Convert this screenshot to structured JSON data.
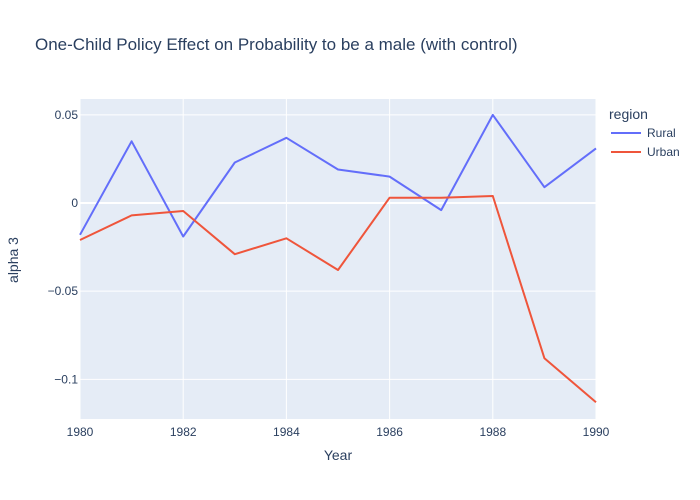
{
  "chart_data": {
    "type": "line",
    "title": "One-Child Policy Effect on Probability to be a male (with control)",
    "xlabel": "Year",
    "ylabel": "alpha 3",
    "xlim": [
      1980,
      1990
    ],
    "ylim": [
      -0.1225,
      0.059
    ],
    "x_ticks": [
      1980,
      1982,
      1984,
      1986,
      1988,
      1990
    ],
    "x_tick_labels": [
      "1980",
      "1982",
      "1984",
      "1986",
      "1988",
      "1990"
    ],
    "y_ticks": [
      0.05,
      0,
      -0.05,
      -0.1
    ],
    "y_tick_labels": [
      "0.05",
      "0",
      "−0.05",
      "−0.1"
    ],
    "legend": {
      "title": "region",
      "placement": "top-right outside"
    },
    "grid": true,
    "background_color": "#e5ecf6",
    "x": [
      1980,
      1981,
      1982,
      1983,
      1984,
      1985,
      1986,
      1987,
      1988,
      1989,
      1990
    ],
    "series": [
      {
        "name": "Rural",
        "color": "#636efa",
        "values": [
          -0.018,
          0.035,
          -0.019,
          0.023,
          0.037,
          0.019,
          0.015,
          -0.004,
          0.05,
          0.009,
          0.031
        ]
      },
      {
        "name": "Urban",
        "color": "#ef553b",
        "values": [
          -0.021,
          -0.007,
          -0.0045,
          -0.029,
          -0.02,
          -0.038,
          0.003,
          0.003,
          0.004,
          -0.088,
          -0.113
        ]
      }
    ]
  }
}
